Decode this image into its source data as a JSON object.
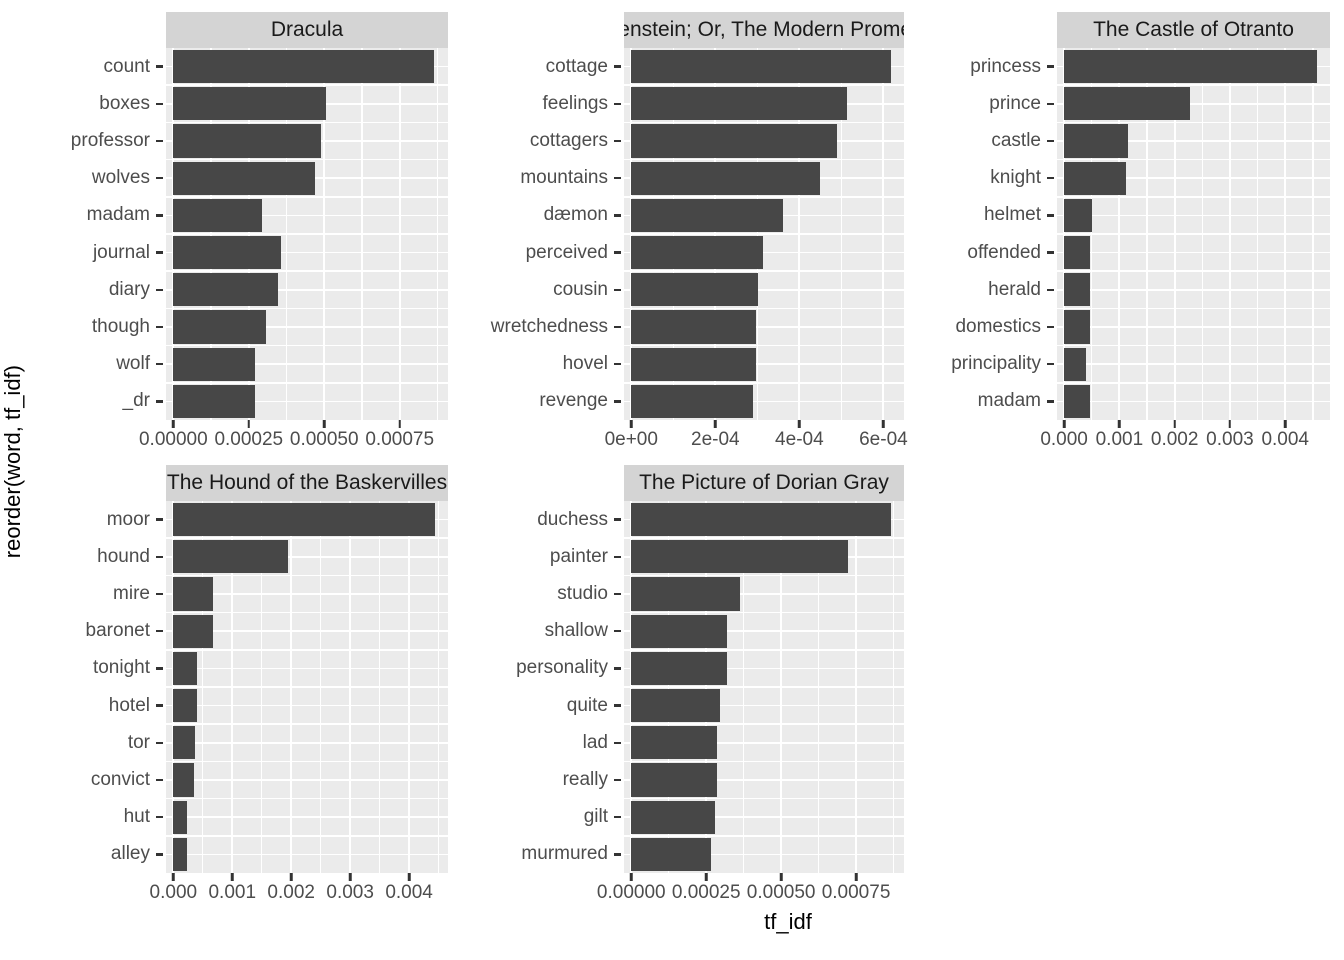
{
  "y_axis_title": "reorder(word, tf_idf)",
  "x_axis_title": "tf_idf",
  "colors": {
    "bar_fill": "#474747",
    "panel_background": "#ebebeb",
    "strip_background": "#d4d4d4",
    "gridline": "#ffffff",
    "tick_mark": "#333333",
    "axis_text": "#4d4d4d",
    "strip_text": "#1a1a1a"
  },
  "chart_data": {
    "type": "bar",
    "orientation": "horizontal",
    "grid": true,
    "facet_layout": "2 rows x 3 cols, 5 panels, free scales",
    "facets": [
      {
        "title": "Dracula",
        "categories": [
          "count",
          "boxes",
          "professor",
          "wolves",
          "madam",
          "journal",
          "diary",
          "though",
          "wolf",
          "_dr"
        ],
        "values": [
          0.000864,
          0.000505,
          0.000489,
          0.000468,
          0.000294,
          0.000358,
          0.000347,
          0.000308,
          0.000271,
          0.000272
        ],
        "x_ticks": [
          "0.00000",
          "0.00025",
          "0.00050",
          "0.00075"
        ],
        "x_tick_values": [
          0,
          0.00025,
          0.0005,
          0.00075
        ],
        "xlim": [
          0,
          0.00091
        ]
      },
      {
        "title": "Frankenstein; Or, The Modern Prometheus",
        "categories": [
          "cottage",
          "feelings",
          "cottagers",
          "mountains",
          "dæmon",
          "perceived",
          "cousin",
          "wretchedness",
          "hovel",
          "revenge"
        ],
        "values": [
          0.000618,
          0.000513,
          0.00049,
          0.000448,
          0.000361,
          0.000313,
          0.000302,
          0.000296,
          0.000296,
          0.00029
        ],
        "x_ticks": [
          "0e+00",
          "2e-04",
          "4e-04",
          "6e-04"
        ],
        "x_tick_values": [
          0,
          0.0002,
          0.0004,
          0.0006
        ],
        "xlim": [
          0,
          0.000649
        ]
      },
      {
        "title": "The Castle of Otranto",
        "categories": [
          "princess",
          "prince",
          "castle",
          "knight",
          "helmet",
          "offended",
          "herald",
          "domestics",
          "principality",
          "madam"
        ],
        "values": [
          0.00457,
          0.00228,
          0.00115,
          0.00112,
          0.000507,
          0.000465,
          0.000465,
          0.00046,
          0.000389,
          0.00047
        ],
        "x_ticks": [
          "0.000",
          "0.001",
          "0.002",
          "0.003",
          "0.004"
        ],
        "x_tick_values": [
          0,
          0.001,
          0.002,
          0.003,
          0.004
        ],
        "xlim": [
          0,
          0.00481
        ]
      },
      {
        "title": "The Hound of the Baskervilles",
        "categories": [
          "moor",
          "hound",
          "mire",
          "baronet",
          "tonight",
          "hotel",
          "tor",
          "convict",
          "hut",
          "alley"
        ],
        "values": [
          0.00444,
          0.00194,
          0.000665,
          0.00067,
          0.00041,
          0.0004,
          0.000375,
          0.000347,
          0.000233,
          0.000233
        ],
        "x_ticks": [
          "0.000",
          "0.001",
          "0.002",
          "0.003",
          "0.004"
        ],
        "x_tick_values": [
          0,
          0.001,
          0.002,
          0.003,
          0.004
        ],
        "xlim": [
          0,
          0.00466
        ]
      },
      {
        "title": "The Picture of Dorian Gray",
        "categories": [
          "duchess",
          "painter",
          "studio",
          "shallow",
          "personality",
          "quite",
          "lad",
          "really",
          "gilt",
          "murmured"
        ],
        "values": [
          0.000868,
          0.000723,
          0.000363,
          0.000319,
          0.000319,
          0.000296,
          0.000285,
          0.000285,
          0.000278,
          0.000266
        ],
        "x_ticks": [
          "0.00000",
          "0.00025",
          "0.00050",
          "0.00075"
        ],
        "x_tick_values": [
          0,
          0.00025,
          0.0005,
          0.00075
        ],
        "xlim": [
          0,
          0.00091
        ]
      }
    ]
  }
}
